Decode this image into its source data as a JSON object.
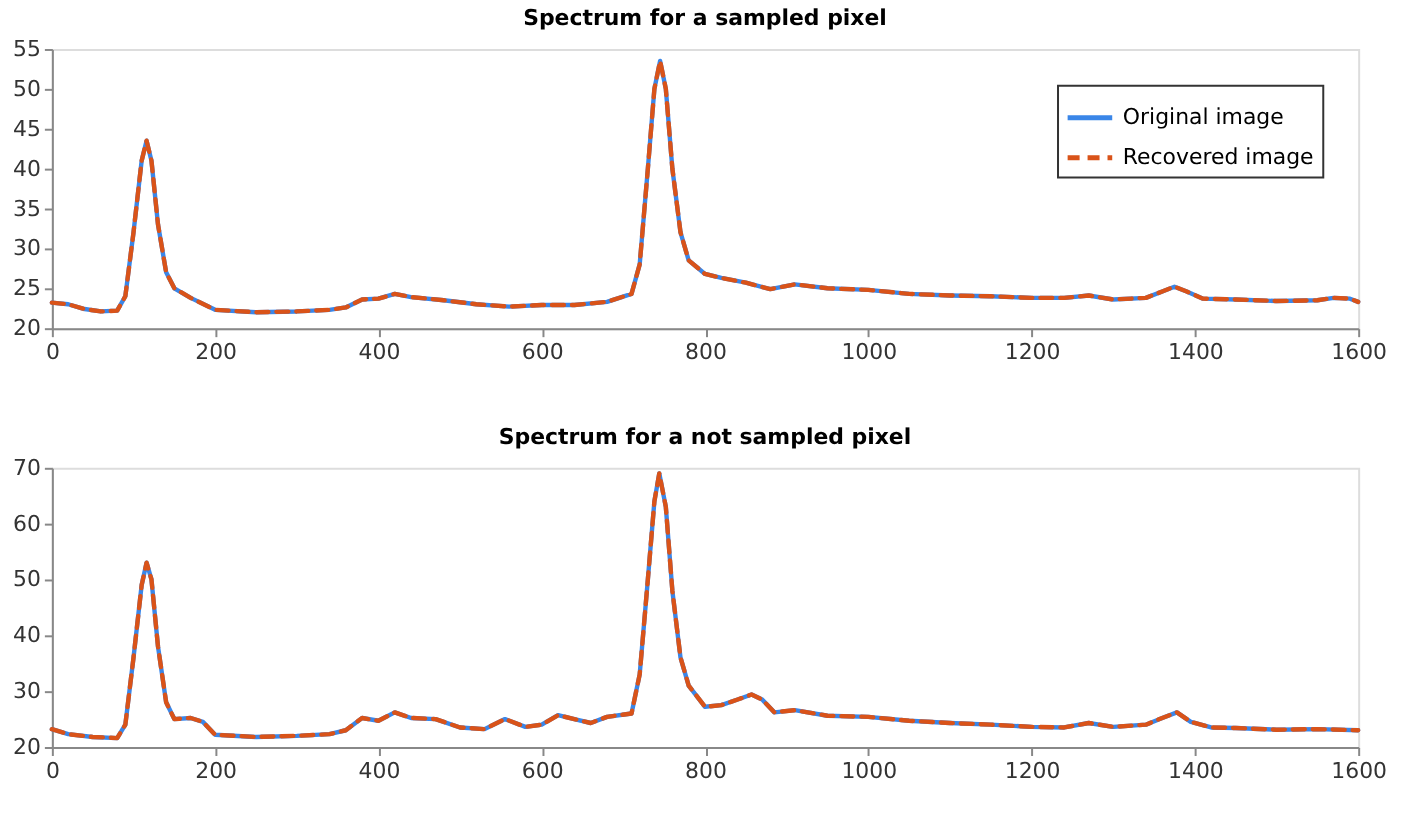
{
  "chart_data": [
    {
      "type": "line",
      "title": "Spectrum for a sampled pixel",
      "xlim": [
        0,
        1600
      ],
      "xticks": [
        0,
        200,
        400,
        600,
        800,
        1000,
        1200,
        1400,
        1600
      ],
      "ylim": [
        20,
        55
      ],
      "yticks": [
        20,
        25,
        30,
        35,
        40,
        45,
        50,
        55
      ],
      "grid": false,
      "legend": "top right",
      "x": [
        0,
        20,
        40,
        60,
        80,
        90,
        100,
        110,
        116,
        122,
        130,
        140,
        150,
        170,
        200,
        250,
        300,
        340,
        360,
        380,
        400,
        420,
        440,
        480,
        520,
        560,
        600,
        640,
        680,
        710,
        720,
        730,
        738,
        745,
        752,
        760,
        770,
        780,
        800,
        820,
        850,
        880,
        910,
        950,
        1000,
        1050,
        1100,
        1150,
        1200,
        1240,
        1270,
        1300,
        1340,
        1360,
        1375,
        1390,
        1410,
        1450,
        1500,
        1550,
        1570,
        1590,
        1600
      ],
      "series": [
        {
          "name": "Original image",
          "color": "#3a86e8",
          "line_style": "solid",
          "values": [
            23.2,
            23.0,
            22.4,
            22.1,
            22.2,
            24,
            32,
            41,
            43.5,
            41,
            33,
            27,
            25,
            23.8,
            22.3,
            22.0,
            22.1,
            22.3,
            22.6,
            23.6,
            23.7,
            24.3,
            23.9,
            23.5,
            23.0,
            22.7,
            22.9,
            22.9,
            23.3,
            24.3,
            28,
            40,
            50,
            53.5,
            50,
            40,
            32,
            28.5,
            26.8,
            26.3,
            25.7,
            24.9,
            25.5,
            25.0,
            24.8,
            24.3,
            24.1,
            24.0,
            23.8,
            23.8,
            24.1,
            23.6,
            23.8,
            24.6,
            25.2,
            24.6,
            23.7,
            23.6,
            23.4,
            23.5,
            23.8,
            23.7,
            23.3
          ]
        },
        {
          "name": "Recovered image",
          "color": "#d95319",
          "line_style": "dashed",
          "values": [
            23.2,
            23.0,
            22.4,
            22.1,
            22.2,
            24,
            32,
            41,
            43.5,
            41,
            33,
            27,
            25,
            23.8,
            22.3,
            22.0,
            22.1,
            22.3,
            22.6,
            23.6,
            23.7,
            24.3,
            23.9,
            23.5,
            23.0,
            22.7,
            22.9,
            22.9,
            23.3,
            24.3,
            28,
            40,
            50,
            53.5,
            50,
            40,
            32,
            28.5,
            26.8,
            26.3,
            25.7,
            24.9,
            25.5,
            25.0,
            24.8,
            24.3,
            24.1,
            24.0,
            23.8,
            23.8,
            24.1,
            23.6,
            23.8,
            24.6,
            25.2,
            24.6,
            23.7,
            23.6,
            23.4,
            23.5,
            23.8,
            23.7,
            23.3
          ]
        }
      ]
    },
    {
      "type": "line",
      "title": "Spectrum for a not sampled pixel",
      "xlim": [
        0,
        1600
      ],
      "xticks": [
        0,
        200,
        400,
        600,
        800,
        1000,
        1200,
        1400,
        1600
      ],
      "ylim": [
        20,
        70
      ],
      "yticks": [
        20,
        30,
        40,
        50,
        60,
        70
      ],
      "grid": false,
      "legend": "top right",
      "x": [
        0,
        20,
        50,
        80,
        90,
        100,
        110,
        116,
        122,
        130,
        140,
        150,
        170,
        185,
        200,
        250,
        300,
        340,
        360,
        380,
        400,
        420,
        440,
        470,
        500,
        530,
        555,
        580,
        600,
        620,
        640,
        660,
        680,
        710,
        720,
        730,
        738,
        744,
        752,
        760,
        770,
        780,
        800,
        820,
        840,
        857,
        870,
        885,
        910,
        950,
        1000,
        1050,
        1100,
        1150,
        1200,
        1240,
        1270,
        1300,
        1340,
        1360,
        1378,
        1395,
        1420,
        1450,
        1500,
        1550,
        1600
      ],
      "series": [
        {
          "name": "Original image",
          "color": "#3a86e8",
          "line_style": "solid",
          "values": [
            23.2,
            22.3,
            21.8,
            21.6,
            24,
            36,
            49,
            53,
            50,
            38,
            28,
            25,
            25.2,
            24.5,
            22.2,
            21.8,
            22.0,
            22.3,
            23,
            25.2,
            24.7,
            26.2,
            25.2,
            25.0,
            23.5,
            23.2,
            25.0,
            23.6,
            24.0,
            25.7,
            25.0,
            24.3,
            25.4,
            26,
            33,
            50,
            64,
            69,
            63,
            48,
            36,
            31,
            27.2,
            27.5,
            28.5,
            29.4,
            28.5,
            26.2,
            26.6,
            25.6,
            25.4,
            24.7,
            24.3,
            24.0,
            23.6,
            23.5,
            24.3,
            23.6,
            24.0,
            25.2,
            26.2,
            24.5,
            23.5,
            23.4,
            23.1,
            23.2,
            23.0
          ]
        },
        {
          "name": "Recovered image",
          "color": "#d95319",
          "line_style": "dashed",
          "values": [
            23.2,
            22.3,
            21.8,
            21.6,
            24,
            36,
            49,
            53,
            50,
            38,
            28,
            25,
            25.2,
            24.5,
            22.2,
            21.8,
            22.0,
            22.3,
            23,
            25.2,
            24.7,
            26.2,
            25.2,
            25.0,
            23.5,
            23.2,
            25.0,
            23.6,
            24.0,
            25.7,
            25.0,
            24.3,
            25.4,
            26,
            33,
            50,
            64,
            69,
            63,
            48,
            36,
            31,
            27.2,
            27.5,
            28.5,
            29.4,
            28.5,
            26.2,
            26.6,
            25.6,
            25.4,
            24.7,
            24.3,
            24.0,
            23.6,
            23.5,
            24.3,
            23.6,
            24.0,
            25.2,
            26.2,
            24.5,
            23.5,
            23.4,
            23.1,
            23.2,
            23.0
          ]
        }
      ]
    }
  ]
}
